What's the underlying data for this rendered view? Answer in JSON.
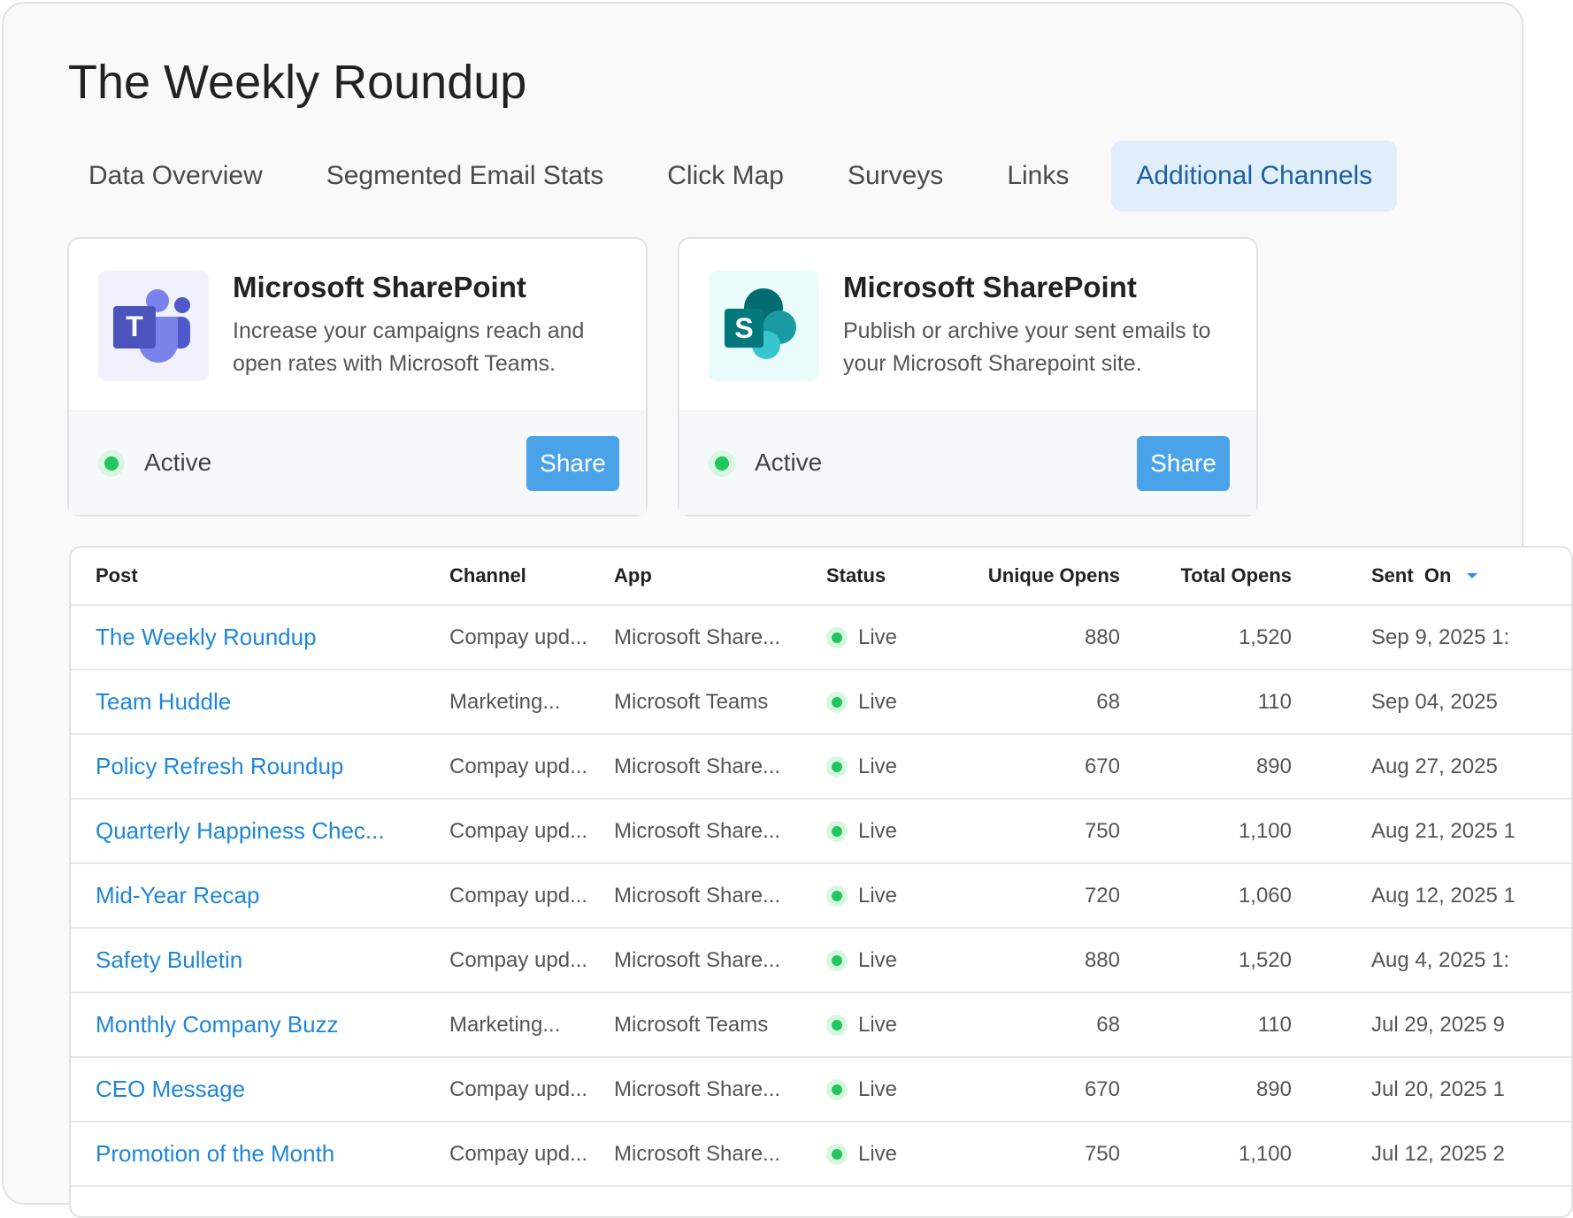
{
  "title": "The Weekly Roundup",
  "tabs": [
    "Data Overview",
    "Segmented Email Stats",
    "Click Map",
    "Surveys",
    "Links",
    "Additional Channels"
  ],
  "active_tab": "Additional Channels",
  "cards": [
    {
      "title": "Microsoft SharePoint",
      "description": "Increase your campaigns reach and open rates with Microsoft Teams.",
      "icon": "microsoft-teams-icon",
      "status": "Active",
      "button": "Share"
    },
    {
      "title": "Microsoft SharePoint",
      "description": "Publish or archive your sent emails to your Microsoft Sharepoint site.",
      "icon": "microsoft-sharepoint-icon",
      "status": "Active",
      "button": "Share"
    }
  ],
  "colors": {
    "accent": "#1f86d8",
    "button": "#4aa3e8",
    "active_tab_bg": "#e1eefb",
    "status_green": "#22c55e"
  },
  "table": {
    "columns": [
      "Post",
      "Channel",
      "App",
      "Status",
      "Unique Opens",
      "Total Opens",
      "Sent  On"
    ],
    "rows": [
      [
        "The Weekly Roundup",
        "Compay upd...",
        "Microsoft Share...",
        "Live",
        "880",
        "1,520",
        "Sep 9, 2025 1:"
      ],
      [
        "Team Huddle",
        "Marketing...",
        "Microsoft Teams",
        "Live",
        "68",
        "110",
        "Sep 04, 2025"
      ],
      [
        "Policy Refresh Roundup",
        "Compay upd...",
        "Microsoft Share...",
        "Live",
        "670",
        "890",
        "Aug 27, 2025"
      ],
      [
        "Quarterly Happiness Chec...",
        "Compay upd...",
        "Microsoft Share...",
        "Live",
        "750",
        "1,100",
        "Aug 21, 2025 1"
      ],
      [
        "Mid-Year Recap",
        "Compay upd...",
        "Microsoft Share...",
        "Live",
        "720",
        "1,060",
        "Aug 12, 2025 1"
      ],
      [
        "Safety Bulletin",
        "Compay upd...",
        "Microsoft Share...",
        "Live",
        "880",
        "1,520",
        "Aug 4, 2025 1:"
      ],
      [
        "Monthly Company Buzz",
        "Marketing...",
        "Microsoft Teams",
        "Live",
        "68",
        "110",
        "Jul 29, 2025 9"
      ],
      [
        "CEO Message",
        "Compay upd...",
        "Microsoft Share...",
        "Live",
        "670",
        "890",
        "Jul 20, 2025 1"
      ],
      [
        "Promotion of the Month",
        "Compay upd...",
        "Microsoft Share...",
        "Live",
        "750",
        "1,100",
        "Jul 12, 2025 2"
      ]
    ]
  }
}
